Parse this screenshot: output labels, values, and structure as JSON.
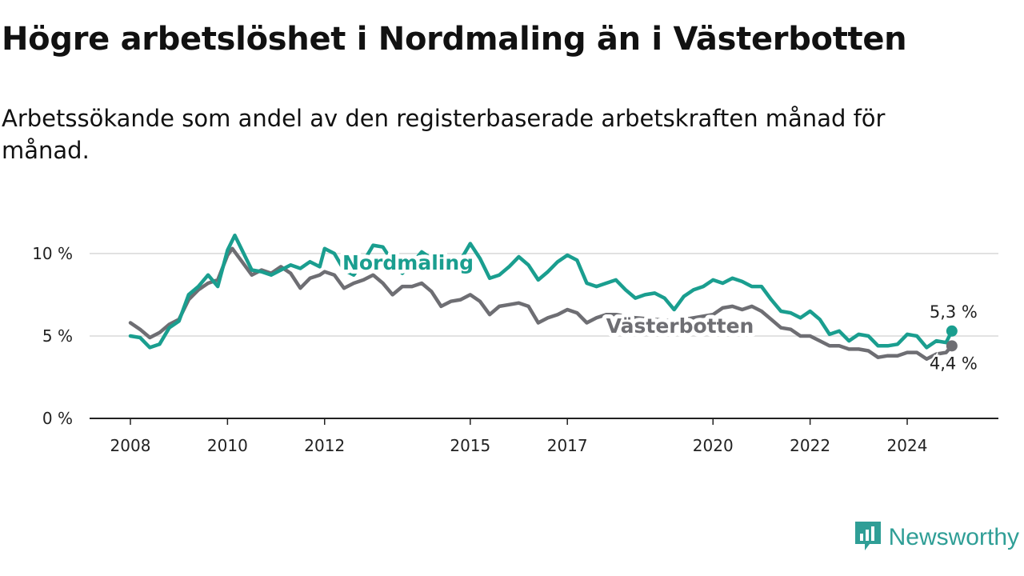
{
  "title": "Högre arbetslöshet i Nordmaling än i Västerbotten",
  "subtitle": "Arbetssökande som andel av den registerbaserade arbetskraften månad för månad.",
  "brand": {
    "name": "Newsworthy",
    "color": "#2f9e96",
    "icon": "newsworthy-chart-logo-icon"
  },
  "chart_data": {
    "type": "line",
    "ylim": [
      0,
      11.5
    ],
    "y_ticks": [
      {
        "value": 0,
        "label": "0 %"
      },
      {
        "value": 5,
        "label": "5 %"
      },
      {
        "value": 10,
        "label": "10 %"
      }
    ],
    "x_ticks": [
      {
        "value": 2008,
        "label": "2008"
      },
      {
        "value": 2010,
        "label": "2010"
      },
      {
        "value": 2012,
        "label": "2012"
      },
      {
        "value": 2015,
        "label": "2015"
      },
      {
        "value": 2017,
        "label": "2017"
      },
      {
        "value": 2020,
        "label": "2020"
      },
      {
        "value": 2022,
        "label": "2022"
      },
      {
        "value": 2024,
        "label": "2024"
      }
    ],
    "grid": true,
    "legend": "direct labels on lines",
    "series": [
      {
        "name": "Nordmaling",
        "color": "#1a9e8f",
        "end_label": "5,3 %",
        "points": [
          [
            2008,
            5.0
          ],
          [
            2008.2,
            4.9
          ],
          [
            2008.4,
            4.3
          ],
          [
            2008.6,
            4.5
          ],
          [
            2008.8,
            5.5
          ],
          [
            2009,
            5.9
          ],
          [
            2009.2,
            7.5
          ],
          [
            2009.4,
            8.0
          ],
          [
            2009.6,
            8.7
          ],
          [
            2009.8,
            8.0
          ],
          [
            2010,
            10.2
          ],
          [
            2010.15,
            11.1
          ],
          [
            2010.3,
            10.2
          ],
          [
            2010.5,
            9.0
          ],
          [
            2010.7,
            8.9
          ],
          [
            2010.9,
            8.7
          ],
          [
            2011.1,
            9.0
          ],
          [
            2011.3,
            9.3
          ],
          [
            2011.5,
            9.1
          ],
          [
            2011.7,
            9.5
          ],
          [
            2011.9,
            9.2
          ],
          [
            2012,
            10.3
          ],
          [
            2012.2,
            10.0
          ],
          [
            2012.4,
            9.0
          ],
          [
            2012.6,
            8.7
          ],
          [
            2012.8,
            9.5
          ],
          [
            2013,
            10.5
          ],
          [
            2013.2,
            10.4
          ],
          [
            2013.4,
            9.5
          ],
          [
            2013.6,
            8.8
          ],
          [
            2013.8,
            9.4
          ],
          [
            2014,
            10.1
          ],
          [
            2014.2,
            9.7
          ],
          [
            2014.4,
            9.0
          ],
          [
            2014.6,
            9.5
          ],
          [
            2014.8,
            9.6
          ],
          [
            2015,
            10.6
          ],
          [
            2015.2,
            9.7
          ],
          [
            2015.4,
            8.5
          ],
          [
            2015.6,
            8.7
          ],
          [
            2015.8,
            9.2
          ],
          [
            2016,
            9.8
          ],
          [
            2016.2,
            9.3
          ],
          [
            2016.4,
            8.4
          ],
          [
            2016.6,
            8.9
          ],
          [
            2016.8,
            9.5
          ],
          [
            2017,
            9.9
          ],
          [
            2017.2,
            9.6
          ],
          [
            2017.4,
            8.2
          ],
          [
            2017.6,
            8.0
          ],
          [
            2017.8,
            8.2
          ],
          [
            2018,
            8.4
          ],
          [
            2018.2,
            7.8
          ],
          [
            2018.4,
            7.3
          ],
          [
            2018.6,
            7.5
          ],
          [
            2018.8,
            7.6
          ],
          [
            2019,
            7.3
          ],
          [
            2019.2,
            6.6
          ],
          [
            2019.4,
            7.4
          ],
          [
            2019.6,
            7.8
          ],
          [
            2019.8,
            8.0
          ],
          [
            2020,
            8.4
          ],
          [
            2020.2,
            8.2
          ],
          [
            2020.4,
            8.5
          ],
          [
            2020.6,
            8.3
          ],
          [
            2020.8,
            8.0
          ],
          [
            2021,
            8.0
          ],
          [
            2021.2,
            7.2
          ],
          [
            2021.4,
            6.5
          ],
          [
            2021.6,
            6.4
          ],
          [
            2021.8,
            6.1
          ],
          [
            2022,
            6.5
          ],
          [
            2022.2,
            6.0
          ],
          [
            2022.4,
            5.1
          ],
          [
            2022.6,
            5.3
          ],
          [
            2022.8,
            4.7
          ],
          [
            2023,
            5.1
          ],
          [
            2023.2,
            5.0
          ],
          [
            2023.4,
            4.4
          ],
          [
            2023.6,
            4.4
          ],
          [
            2023.8,
            4.5
          ],
          [
            2024,
            5.1
          ],
          [
            2024.2,
            5.0
          ],
          [
            2024.4,
            4.3
          ],
          [
            2024.6,
            4.7
          ],
          [
            2024.8,
            4.6
          ],
          [
            2024.92,
            5.3
          ]
        ]
      },
      {
        "name": "Västerbotten",
        "color": "#6e6e73",
        "end_label": "4,4 %",
        "points": [
          [
            2008,
            5.8
          ],
          [
            2008.2,
            5.4
          ],
          [
            2008.4,
            4.9
          ],
          [
            2008.6,
            5.2
          ],
          [
            2008.8,
            5.7
          ],
          [
            2009,
            6.0
          ],
          [
            2009.2,
            7.2
          ],
          [
            2009.4,
            7.8
          ],
          [
            2009.6,
            8.2
          ],
          [
            2009.8,
            8.4
          ],
          [
            2010,
            9.9
          ],
          [
            2010.1,
            10.3
          ],
          [
            2010.3,
            9.5
          ],
          [
            2010.5,
            8.7
          ],
          [
            2010.7,
            9.0
          ],
          [
            2010.9,
            8.8
          ],
          [
            2011.1,
            9.2
          ],
          [
            2011.3,
            8.8
          ],
          [
            2011.5,
            7.9
          ],
          [
            2011.7,
            8.5
          ],
          [
            2011.9,
            8.7
          ],
          [
            2012,
            8.9
          ],
          [
            2012.2,
            8.7
          ],
          [
            2012.4,
            7.9
          ],
          [
            2012.6,
            8.2
          ],
          [
            2012.8,
            8.4
          ],
          [
            2013,
            8.7
          ],
          [
            2013.2,
            8.2
          ],
          [
            2013.4,
            7.5
          ],
          [
            2013.6,
            8.0
          ],
          [
            2013.8,
            8.0
          ],
          [
            2014,
            8.2
          ],
          [
            2014.2,
            7.7
          ],
          [
            2014.4,
            6.8
          ],
          [
            2014.6,
            7.1
          ],
          [
            2014.8,
            7.2
          ],
          [
            2015,
            7.5
          ],
          [
            2015.2,
            7.1
          ],
          [
            2015.4,
            6.3
          ],
          [
            2015.6,
            6.8
          ],
          [
            2015.8,
            6.9
          ],
          [
            2016,
            7.0
          ],
          [
            2016.2,
            6.8
          ],
          [
            2016.4,
            5.8
          ],
          [
            2016.6,
            6.1
          ],
          [
            2016.8,
            6.3
          ],
          [
            2017,
            6.6
          ],
          [
            2017.2,
            6.4
          ],
          [
            2017.4,
            5.8
          ],
          [
            2017.6,
            6.1
          ],
          [
            2017.8,
            6.3
          ],
          [
            2018,
            6.3
          ],
          [
            2018.4,
            6.1
          ],
          [
            2018.8,
            6.0
          ],
          [
            2019.2,
            5.9
          ],
          [
            2019.6,
            6.1
          ],
          [
            2020,
            6.3
          ],
          [
            2020.2,
            6.7
          ],
          [
            2020.4,
            6.8
          ],
          [
            2020.6,
            6.6
          ],
          [
            2020.8,
            6.8
          ],
          [
            2021,
            6.5
          ],
          [
            2021.2,
            6.0
          ],
          [
            2021.4,
            5.5
          ],
          [
            2021.6,
            5.4
          ],
          [
            2021.8,
            5.0
          ],
          [
            2022,
            5.0
          ],
          [
            2022.2,
            4.7
          ],
          [
            2022.4,
            4.4
          ],
          [
            2022.6,
            4.4
          ],
          [
            2022.8,
            4.2
          ],
          [
            2023,
            4.2
          ],
          [
            2023.2,
            4.1
          ],
          [
            2023.4,
            3.7
          ],
          [
            2023.6,
            3.8
          ],
          [
            2023.8,
            3.8
          ],
          [
            2024,
            4.0
          ],
          [
            2024.2,
            4.0
          ],
          [
            2024.4,
            3.6
          ],
          [
            2024.6,
            3.9
          ],
          [
            2024.8,
            4.0
          ],
          [
            2024.92,
            4.4
          ]
        ]
      }
    ]
  }
}
